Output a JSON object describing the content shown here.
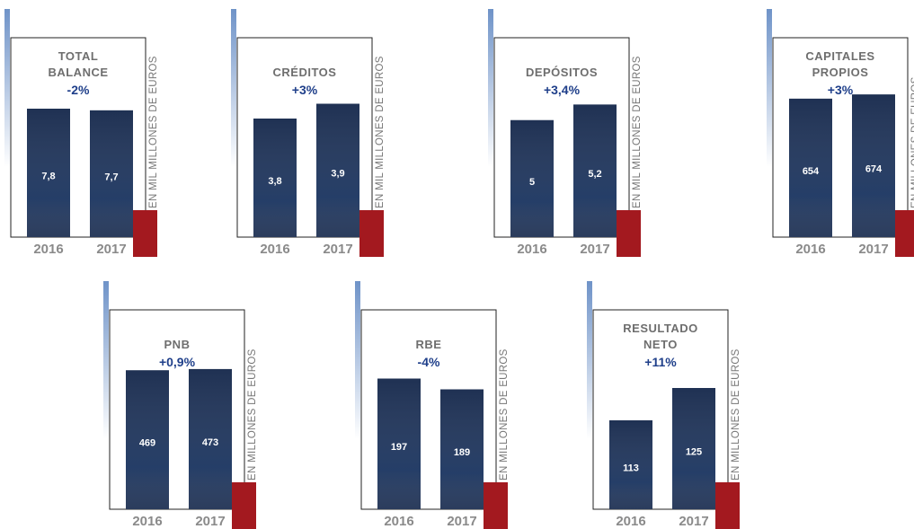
{
  "chart_data": [
    {
      "type": "bar",
      "title": "TOTAL BALANCE",
      "subtitle": "-2%",
      "y_label": "EN MIL MILLONES DE EUROS",
      "categories": [
        "2016",
        "2017"
      ],
      "values": [
        7.8,
        7.7
      ],
      "value_labels": [
        "7,8",
        "7,7"
      ],
      "ylim": [
        0,
        9
      ],
      "color": "#13264a"
    },
    {
      "type": "bar",
      "title": "CRÉDITOS",
      "subtitle": "+3%",
      "y_label": "EN MIL MILLONES DE EUROS",
      "categories": [
        "2016",
        "2017"
      ],
      "values": [
        3.8,
        3.9
      ],
      "value_labels": [
        "3,8",
        "3,9"
      ],
      "ylim": [
        3,
        4
      ],
      "color": "#13264a"
    },
    {
      "type": "bar",
      "title": "DEPÓSITOS",
      "subtitle": "+3,4%",
      "y_label": "EN MIL MILLONES DE EUROS",
      "categories": [
        "2016",
        "2017"
      ],
      "values": [
        5,
        5.2
      ],
      "value_labels": [
        "5",
        "5,2"
      ],
      "ylim": [
        3.5,
        5.4
      ],
      "color": "#13264a"
    },
    {
      "type": "bar",
      "title": "CAPITALES PROPIOS",
      "subtitle": "+3%",
      "y_label": "EN MILLONES DE EUROS",
      "categories": [
        "2016",
        "2017"
      ],
      "values": [
        654,
        674
      ],
      "ylim": [
        0,
        700
      ],
      "color": "#13264a"
    },
    {
      "type": "bar",
      "title": "PNB",
      "subtitle": "+0,9%",
      "y_label": "EN MILLONES DE EUROS",
      "categories": [
        "2016",
        "2017"
      ],
      "values": [
        469,
        473
      ],
      "ylim": [
        0,
        500
      ],
      "color": "#13264a"
    },
    {
      "type": "bar",
      "title": "RBE",
      "subtitle": "-4%",
      "y_label": "EN MILLONES DE EUROS",
      "categories": [
        "2016",
        "2017"
      ],
      "values": [
        197,
        189
      ],
      "ylim": [
        100,
        210
      ],
      "color": "#13264a"
    },
    {
      "type": "bar",
      "title": "RESULTADO NETO",
      "subtitle": "+11%",
      "y_label": "EN MILLONES DE EUROS",
      "categories": [
        "2016",
        "2017"
      ],
      "values": [
        113,
        125
      ],
      "ylim": [
        80,
        135
      ],
      "color": "#13264a"
    }
  ]
}
